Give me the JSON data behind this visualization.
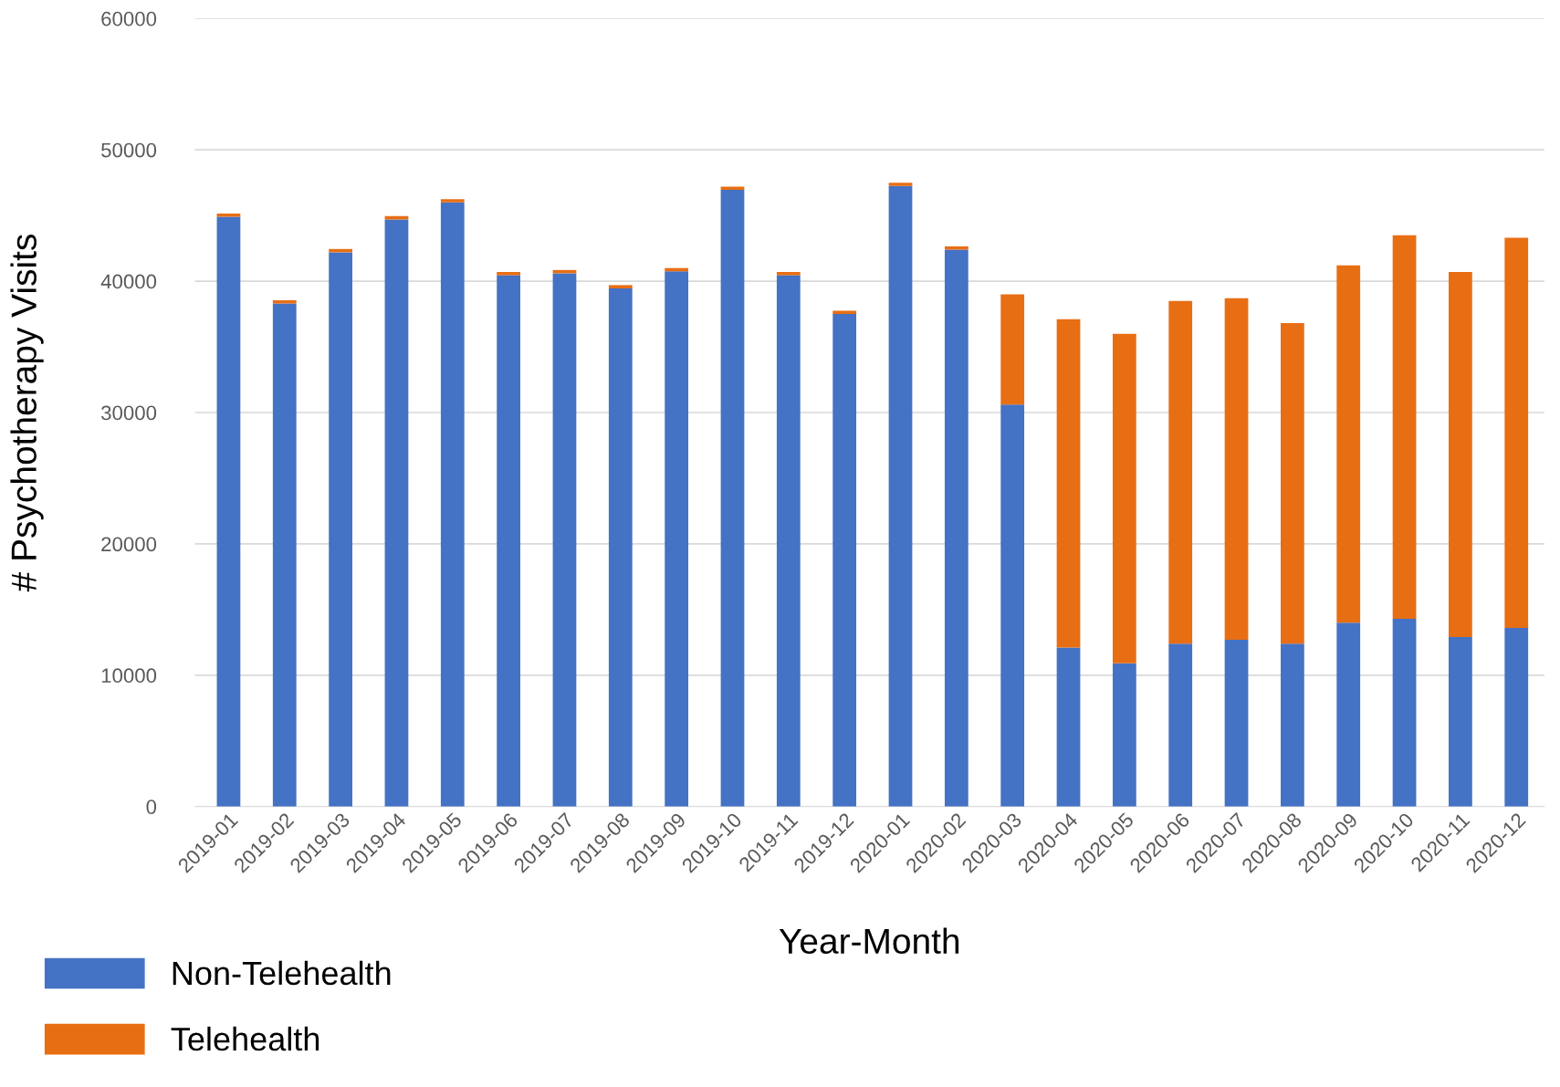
{
  "chart_data": {
    "type": "bar",
    "stacked": true,
    "xlabel": "Year-Month",
    "ylabel": "# Psychotherapy Visits",
    "categories": [
      "2019-01",
      "2019-02",
      "2019-03",
      "2019-04",
      "2019-05",
      "2019-06",
      "2019-07",
      "2019-08",
      "2019-09",
      "2019-10",
      "2019-11",
      "2019-12",
      "2020-01",
      "2020-02",
      "2020-03",
      "2020-04",
      "2020-05",
      "2020-06",
      "2020-07",
      "2020-08",
      "2020-09",
      "2020-10",
      "2020-11",
      "2020-12"
    ],
    "series": [
      {
        "name": "Non-Telehealth",
        "color": "#4472c4",
        "values": [
          44900,
          38300,
          42200,
          44700,
          46000,
          40450,
          40600,
          39450,
          40750,
          46950,
          40450,
          37500,
          47250,
          42400,
          30600,
          12100,
          10900,
          12400,
          12700,
          12400,
          14000,
          14300,
          12900,
          13600
        ]
      },
      {
        "name": "Telehealth",
        "color": "#e86e14",
        "values": [
          250,
          250,
          250,
          250,
          250,
          250,
          250,
          250,
          250,
          250,
          250,
          250,
          250,
          250,
          8400,
          25000,
          25100,
          26100,
          26000,
          24400,
          27200,
          29200,
          27800,
          29700
        ]
      }
    ],
    "ylim": [
      0,
      60000
    ],
    "yticks": [
      0,
      10000,
      20000,
      30000,
      40000,
      50000,
      60000
    ],
    "grid": "y",
    "legend": "bottom left"
  }
}
